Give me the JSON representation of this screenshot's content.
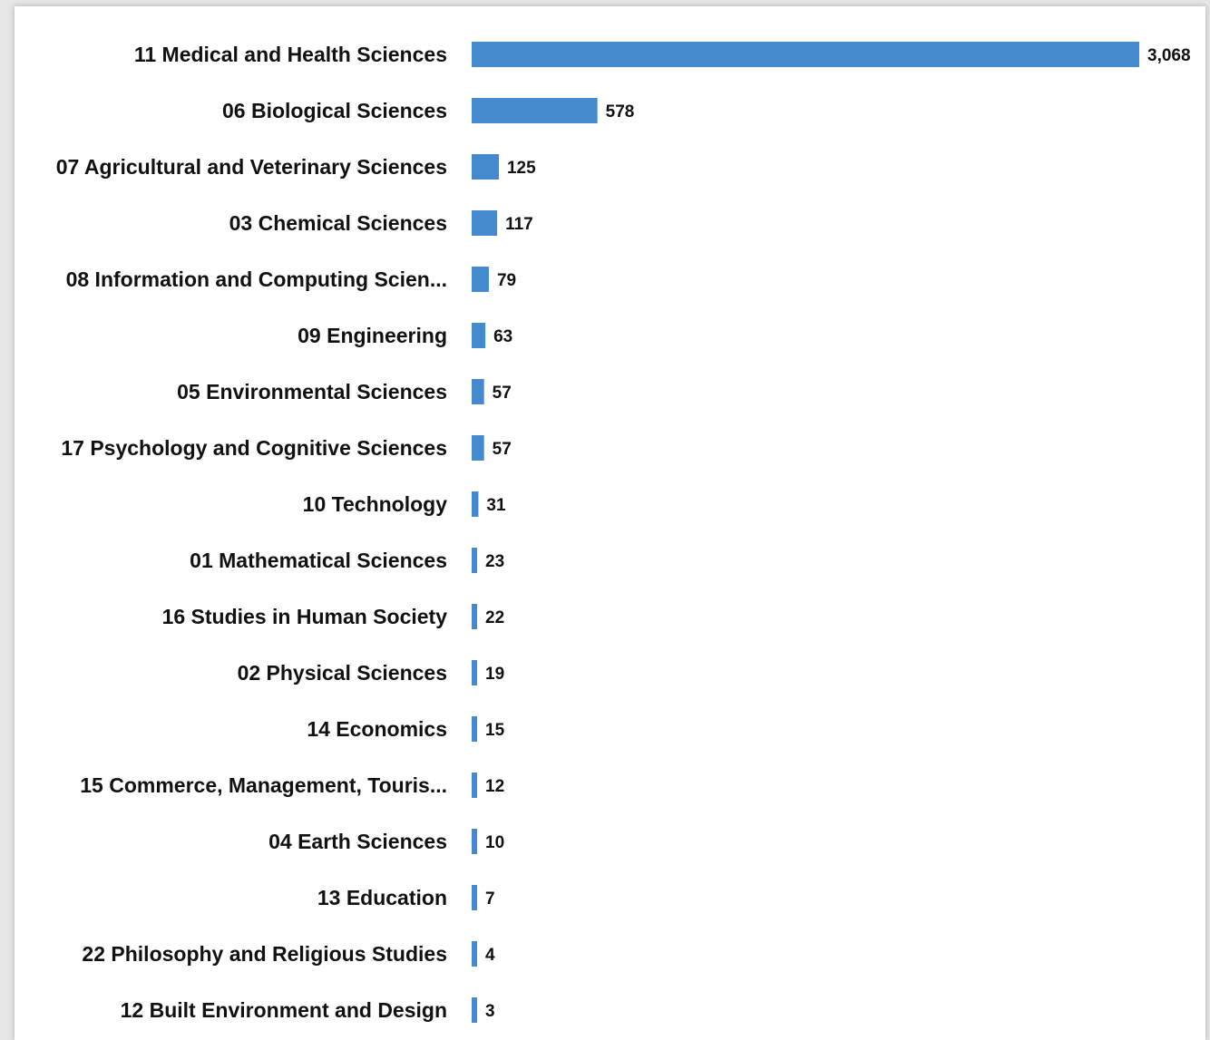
{
  "chart_data": {
    "type": "bar",
    "orientation": "horizontal",
    "categories": [
      "11 Medical and Health Sciences",
      "06 Biological Sciences",
      "07 Agricultural and Veterinary Sciences",
      "03 Chemical Sciences",
      "08 Information and Computing Scien...",
      "09 Engineering",
      "05 Environmental Sciences",
      "17 Psychology and Cognitive Sciences",
      "10 Technology",
      "01 Mathematical Sciences",
      "16 Studies in Human Society",
      "02 Physical Sciences",
      "14 Economics",
      "15 Commerce, Management, Touris...",
      "04 Earth Sciences",
      "13 Education",
      "22 Philosophy and Religious Studies",
      "12 Built Environment and Design"
    ],
    "values": [
      3068,
      578,
      125,
      117,
      79,
      63,
      57,
      57,
      31,
      23,
      22,
      19,
      15,
      12,
      10,
      7,
      4,
      3
    ],
    "value_labels": [
      "3,068",
      "578",
      "125",
      "117",
      "79",
      "63",
      "57",
      "57",
      "31",
      "23",
      "22",
      "19",
      "15",
      "12",
      "10",
      "7",
      "4",
      "3"
    ],
    "title": "",
    "xlabel": "",
    "ylabel": "",
    "xlim": [
      0,
      3068
    ],
    "grid": false,
    "bar_color": "#4589cf"
  }
}
